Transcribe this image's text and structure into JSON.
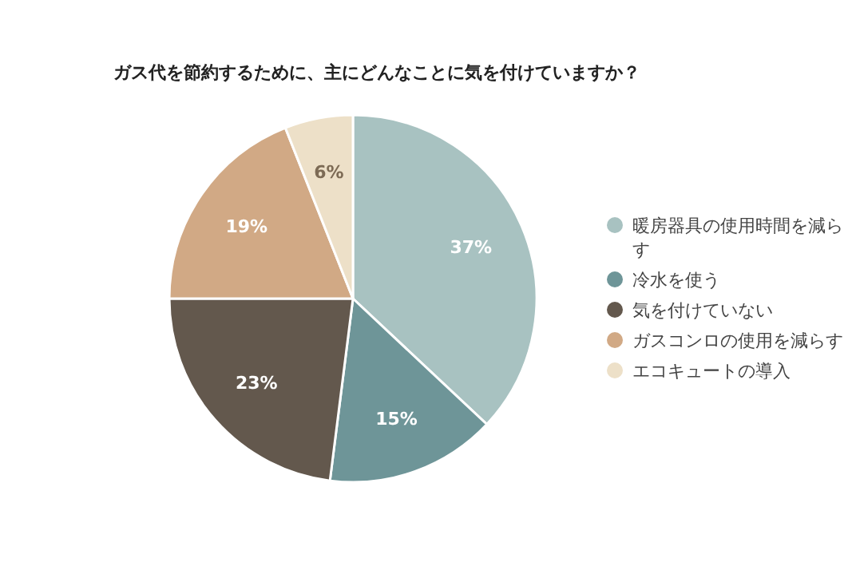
{
  "chart_data": {
    "type": "pie",
    "title": "ガス代を節約するために、主にどんなことに気を付けていますか？",
    "categories": [
      "暖房器具の使用時間を減らす",
      "冷水を使う",
      "気を付けていない",
      "ガスコンロの使用を減らす",
      "エコキュートの導入"
    ],
    "values": [
      37,
      15,
      23,
      19,
      6
    ],
    "colors": [
      "#a8c2c1",
      "#6e9598",
      "#63584d",
      "#d1a985",
      "#ede0c8"
    ],
    "value_labels": [
      "37%",
      "15%",
      "23%",
      "19%",
      "6%"
    ],
    "legend": "right"
  }
}
